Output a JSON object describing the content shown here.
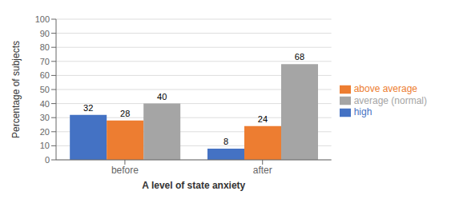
{
  "chart_data": {
    "type": "bar",
    "categories": [
      "before",
      "after"
    ],
    "series": [
      {
        "name": "high",
        "color": "#4472C4",
        "values": [
          32,
          8
        ]
      },
      {
        "name": "above average",
        "color": "#ED7D31",
        "values": [
          28,
          24
        ]
      },
      {
        "name": "average (normal)",
        "color": "#A5A5A5",
        "values": [
          40,
          68
        ]
      }
    ],
    "xlabel": "A level of state anxiety",
    "ylabel": "Percentage of subjects",
    "ylim": [
      0,
      100
    ],
    "yticks": [
      0,
      10,
      20,
      30,
      40,
      50,
      60,
      70,
      80,
      90,
      100
    ],
    "grid": true,
    "legend": "right",
    "data_labels": true
  }
}
